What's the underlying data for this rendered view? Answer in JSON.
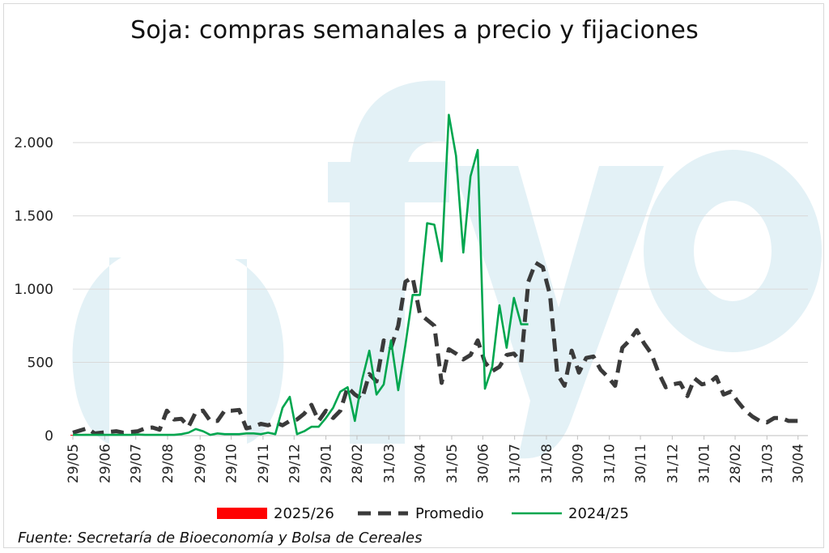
{
  "chart_data": {
    "type": "line",
    "title": "Soja: compras semanales a precio y fijaciones",
    "source": "Fuente: Secretaría de Bioeconomía y Bolsa de Cereales",
    "watermark": "fyo",
    "ylim": [
      0,
      2200
    ],
    "yticks": [
      0,
      500,
      1000,
      1500,
      2000
    ],
    "ytick_labels": [
      "0",
      "500",
      "1.000",
      "1.500",
      "2.000"
    ],
    "grid": true,
    "legend_position": "bottom",
    "x_weeks_total": 49,
    "xticks": [
      {
        "label": "29/05",
        "week": 0.0
      },
      {
        "label": "29/06",
        "week": 4.4
      },
      {
        "label": "29/07",
        "week": 8.7
      },
      {
        "label": "29/08",
        "week": 13.1
      },
      {
        "label": "29/09",
        "week": 17.6
      },
      {
        "label": "29/10",
        "week": 21.9
      },
      {
        "label": "29/11",
        "week": 26.3
      },
      {
        "label": "29/12",
        "week": 30.6
      },
      {
        "label": "29/01",
        "week": 35.0
      },
      {
        "label": "28/02",
        "week": 39.3
      },
      {
        "label": "31/03",
        "week": 43.7
      },
      {
        "label": "30/04",
        "week": 48.0
      },
      {
        "label": "31/05",
        "week": 52.4
      },
      {
        "label": "30/06",
        "week": 56.7
      },
      {
        "label": "31/07",
        "week": 61.1
      },
      {
        "label": "31/08",
        "week": 65.5
      },
      {
        "label": "30/09",
        "week": 69.8
      },
      {
        "label": "31/10",
        "week": 74.2
      },
      {
        "label": "30/11",
        "week": 78.5
      },
      {
        "label": "31/12",
        "week": 82.9
      },
      {
        "label": "31/01",
        "week": 87.3
      },
      {
        "label": "28/02",
        "week": 91.6
      },
      {
        "label": "31/03",
        "week": 96.0
      },
      {
        "label": "30/04",
        "week": 100.3
      }
    ],
    "series": [
      {
        "name": "2025/26",
        "color": "#ff0000",
        "style": "bar",
        "x": [
          0,
          1,
          2,
          3
        ],
        "values": [
          5,
          8,
          12,
          6
        ]
      },
      {
        "name": "Promedio",
        "color": "#3a3a3a",
        "style": "dashed",
        "x": [
          0,
          1,
          2,
          3,
          4,
          5,
          6,
          7,
          8,
          9,
          10,
          11,
          12,
          13,
          14,
          15,
          16,
          17,
          18,
          19,
          20,
          21,
          22,
          23,
          24,
          25,
          26,
          27,
          28,
          29,
          30,
          31,
          32,
          33,
          34,
          35,
          36,
          37,
          38,
          39,
          40,
          41,
          42,
          43,
          44,
          45,
          46,
          47,
          48,
          49,
          50,
          51,
          52,
          53,
          54,
          55,
          56,
          57,
          58,
          59,
          60,
          61,
          62,
          63,
          64,
          65,
          66,
          67,
          68,
          69,
          70,
          71,
          72,
          73,
          74,
          75,
          76,
          77,
          78,
          79,
          80,
          81,
          82,
          83,
          84,
          85,
          86,
          87,
          88,
          89,
          90,
          91,
          92,
          93,
          94,
          95,
          96,
          97,
          98,
          99,
          100,
          101
        ],
        "values": [
          20,
          35,
          50,
          15,
          20,
          25,
          30,
          20,
          25,
          30,
          50,
          55,
          40,
          170,
          110,
          115,
          60,
          160,
          170,
          100,
          100,
          170,
          170,
          175,
          50,
          60,
          80,
          70,
          90,
          70,
          100,
          110,
          150,
          210,
          100,
          170,
          120,
          170,
          330,
          280,
          250,
          420,
          370,
          650,
          600,
          750,
          1050,
          1080,
          830,
          790,
          750,
          360,
          590,
          560,
          520,
          550,
          650,
          500,
          440,
          470,
          550,
          560,
          500,
          1050,
          1180,
          1150,
          960,
          420,
          340,
          580,
          430,
          530,
          540,
          450,
          400,
          340,
          600,
          650,
          720,
          630,
          560,
          430,
          330,
          350,
          360,
          270,
          390,
          350,
          360,
          400,
          280,
          300,
          230,
          170,
          130,
          100,
          90,
          120,
          120,
          100,
          100,
          100
        ]
      },
      {
        "name": "2024/25",
        "color": "#00a64f",
        "style": "solid",
        "x": [
          0,
          1,
          2,
          3,
          4,
          5,
          6,
          7,
          8,
          9,
          10,
          11,
          12,
          13,
          14,
          15,
          16,
          17,
          18,
          19,
          20,
          21,
          22,
          23,
          24,
          25,
          26,
          27,
          28,
          29,
          30,
          31,
          32,
          33,
          34,
          35,
          36,
          37,
          38,
          39,
          40,
          41,
          42,
          43,
          44,
          45,
          46,
          47,
          48,
          49,
          50,
          51,
          52,
          53,
          54,
          55,
          56,
          57,
          58,
          59,
          60,
          61,
          62,
          63
        ],
        "values": [
          5,
          5,
          5,
          5,
          5,
          5,
          5,
          5,
          5,
          8,
          5,
          5,
          5,
          5,
          5,
          10,
          20,
          45,
          30,
          5,
          15,
          10,
          10,
          10,
          15,
          15,
          10,
          20,
          10,
          190,
          265,
          10,
          30,
          60,
          60,
          120,
          190,
          300,
          330,
          100,
          380,
          580,
          280,
          350,
          650,
          310,
          620,
          960,
          960,
          1450,
          1440,
          1190,
          2190,
          1910,
          1250,
          1770,
          1950,
          320,
          470,
          890,
          600,
          940,
          760,
          760
        ]
      }
    ]
  }
}
